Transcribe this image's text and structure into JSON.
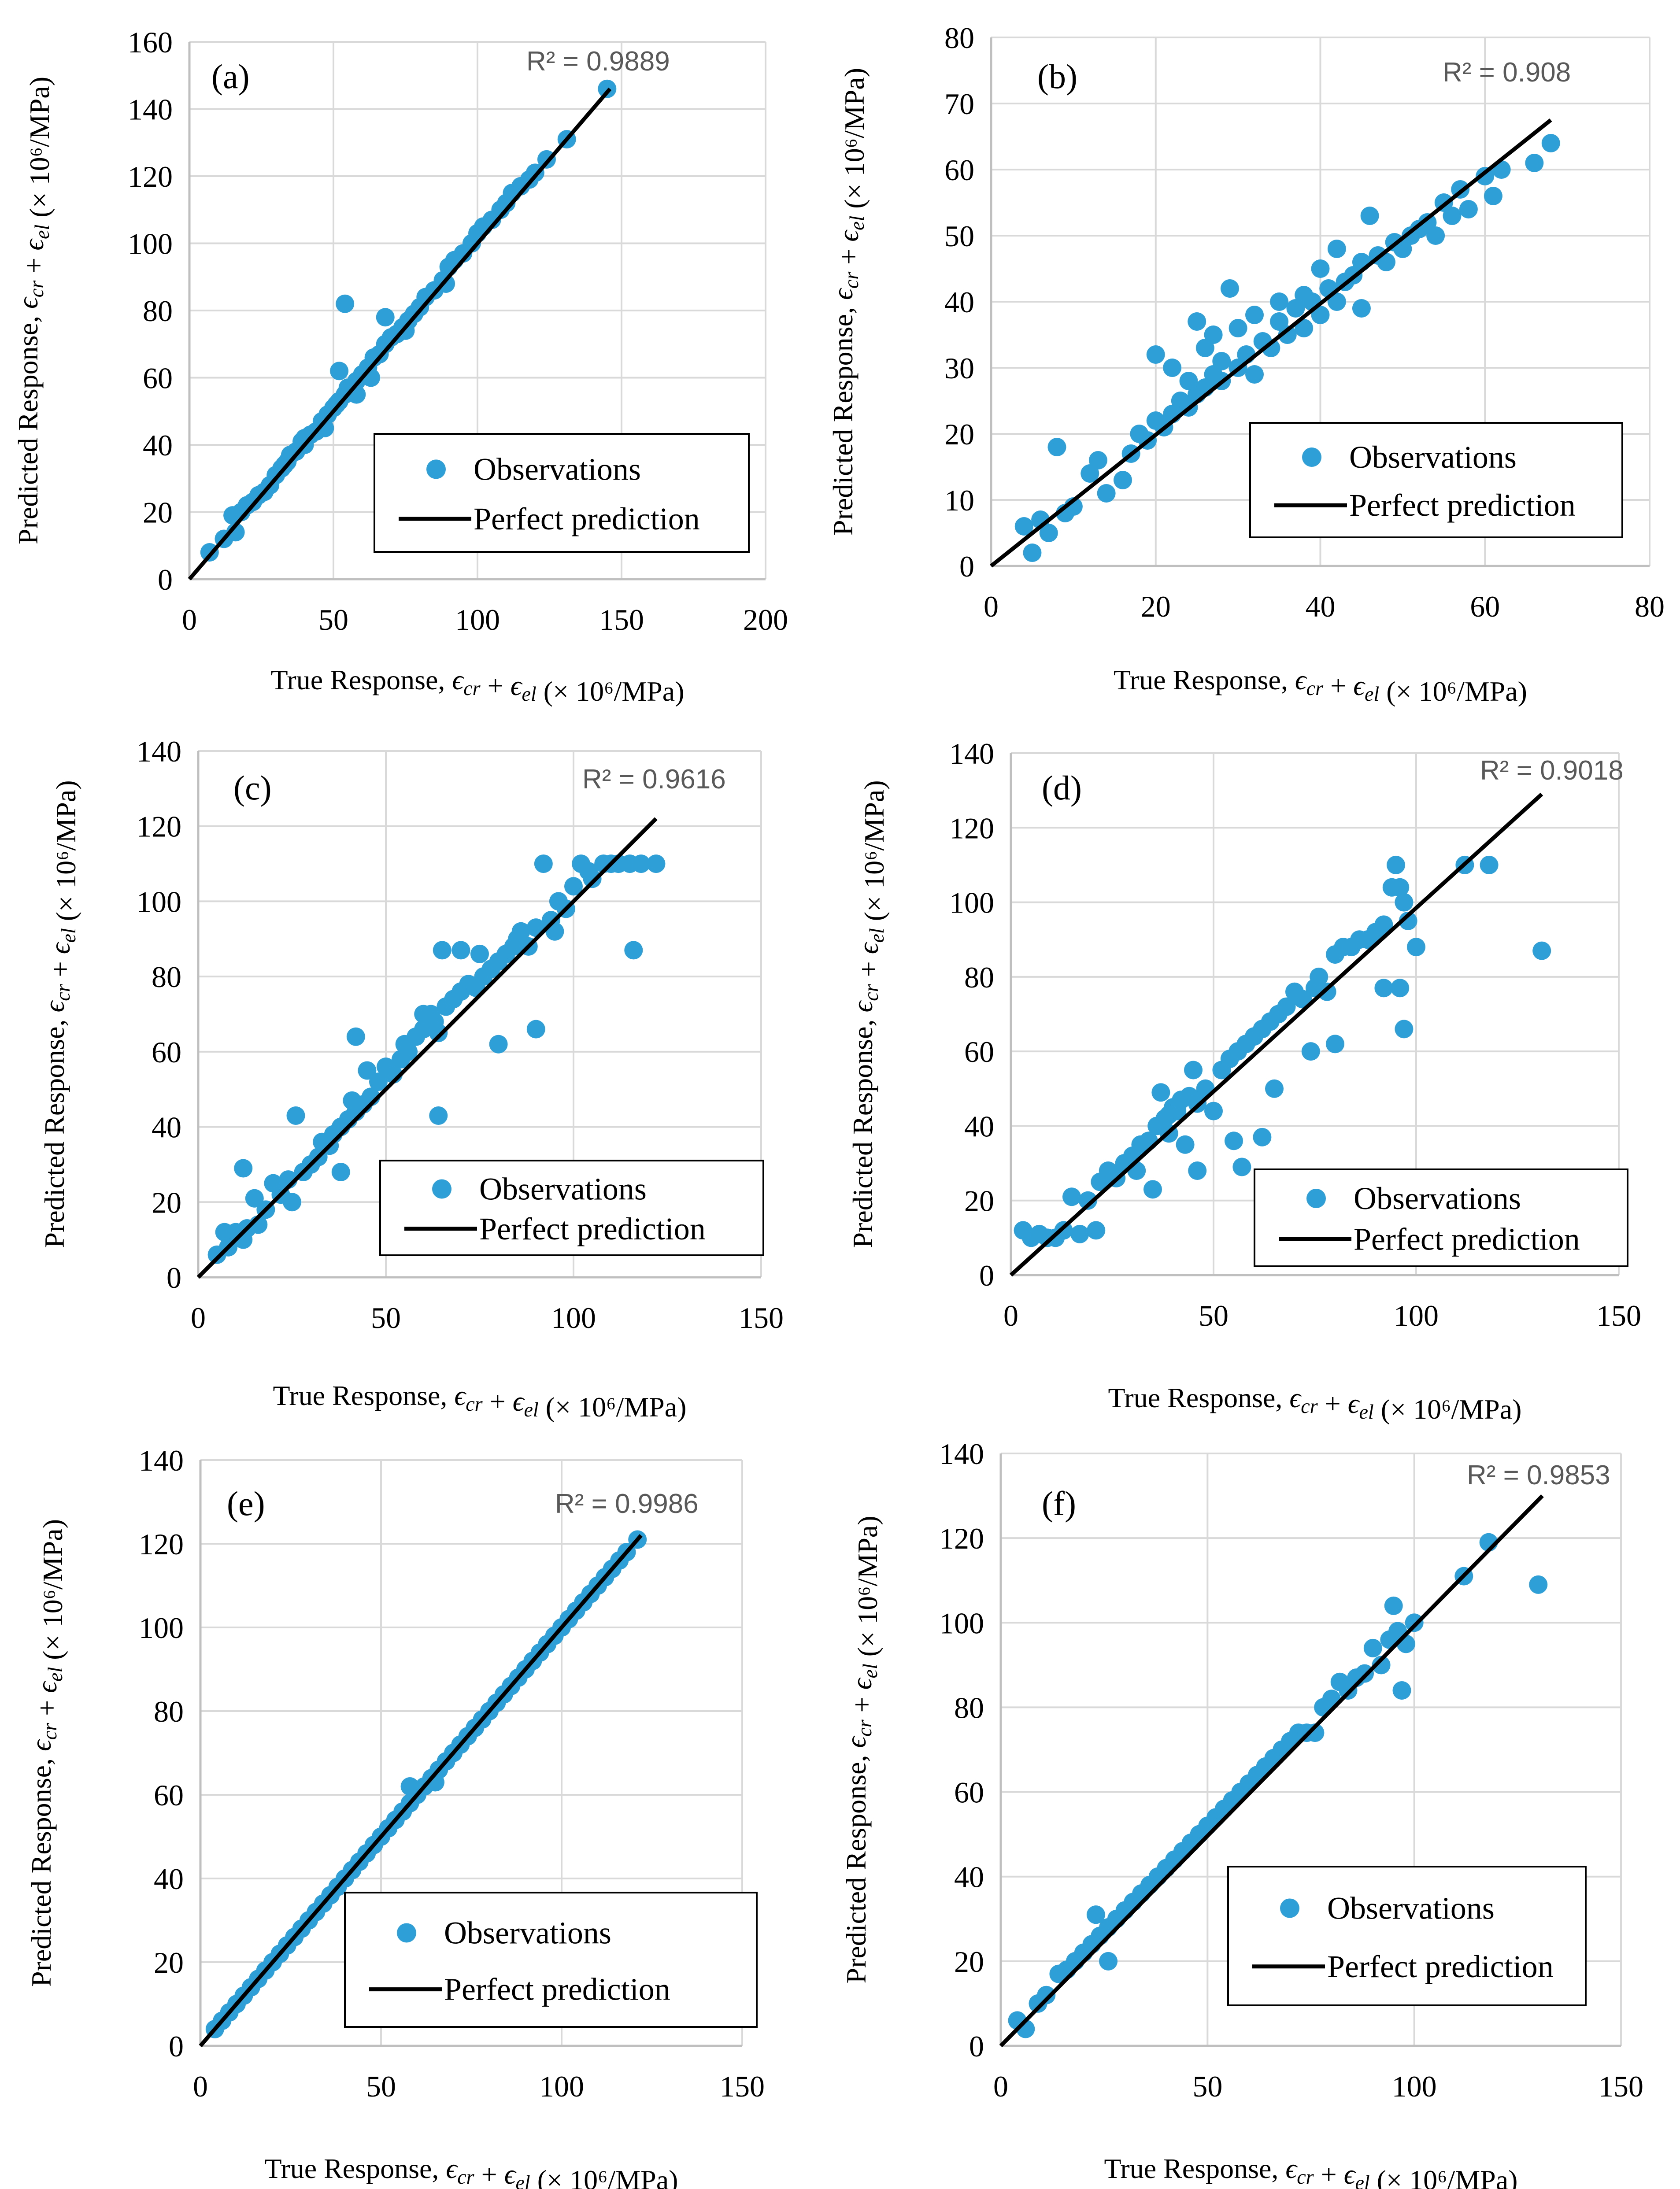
{
  "figure": {
    "marker_color": "#2F9FD8",
    "line_color": "#000000",
    "grid_color": "#D9D9D9",
    "axis_color": "#BFBFBF",
    "r2_color": "#595959"
  },
  "chart_data": [
    {
      "type": "scatter",
      "panel_label": "(a)",
      "r2_label": "R² = 0.9889",
      "xlabel": "True Response, εcr + εel (× 10⁶/MPa)",
      "ylabel": "Predicted Response, εcr + εel (× 10⁶/MPa)",
      "xlim": [
        0,
        200
      ],
      "ylim": [
        0,
        160
      ],
      "x_ticks": [
        0,
        50,
        100,
        150,
        200
      ],
      "y_ticks": [
        0,
        20,
        40,
        60,
        80,
        100,
        120,
        140,
        160
      ],
      "x_tick_labels": [
        "0",
        "50",
        "100",
        "150",
        "200"
      ],
      "y_tick_labels": [
        "0",
        "20",
        "40",
        "60",
        "80",
        "100",
        "120",
        "140",
        "160"
      ],
      "grid": true,
      "legend": {
        "placement": "bottom-right",
        "entries": [
          "Observations",
          "Perfect prediction"
        ]
      },
      "perfect_line": {
        "x": [
          0,
          146
        ],
        "y": [
          0,
          146
        ]
      },
      "observations": {
        "x": [
          7,
          12,
          15,
          16,
          18,
          20,
          22,
          24,
          26,
          28,
          30,
          32,
          34,
          35,
          37,
          39,
          40,
          42,
          44,
          46,
          48,
          50,
          51,
          52,
          54,
          55,
          56,
          58,
          60,
          62,
          64,
          66,
          68,
          70,
          72,
          74,
          76,
          78,
          80,
          82,
          85,
          88,
          90,
          92,
          95,
          98,
          100,
          102,
          105,
          108,
          110,
          112,
          115,
          118,
          120,
          124,
          131,
          145,
          54,
          52,
          68,
          28,
          40,
          63,
          75,
          47,
          58,
          33,
          89
        ],
        "y": [
          8,
          12,
          19,
          14,
          20,
          22,
          23,
          25,
          26,
          28,
          31,
          33,
          35,
          37,
          38,
          41,
          42,
          43,
          44,
          47,
          49,
          51,
          52,
          53,
          55,
          57,
          56,
          59,
          61,
          63,
          66,
          67,
          70,
          72,
          73,
          75,
          77,
          79,
          81,
          84,
          86,
          89,
          93,
          95,
          97,
          100,
          103,
          105,
          107,
          110,
          112,
          115,
          117,
          119,
          121,
          125,
          131,
          146,
          82,
          62,
          78,
          28,
          40,
          60,
          74,
          45,
          55,
          34,
          88
        ]
      }
    },
    {
      "type": "scatter",
      "panel_label": "(b)",
      "r2_label": "R² = 0.908",
      "xlabel": "True Response, εcr + εel (× 10⁶/MPa)",
      "ylabel": "Predicted Response, εcr + εel (× 10⁶/MPa)",
      "xlim": [
        0,
        80
      ],
      "ylim": [
        0,
        80
      ],
      "x_ticks": [
        0,
        20,
        40,
        60,
        80
      ],
      "y_ticks": [
        0,
        10,
        20,
        30,
        40,
        50,
        60,
        70,
        80
      ],
      "x_tick_labels": [
        "0",
        "20",
        "40",
        "60",
        "80"
      ],
      "y_tick_labels": [
        "0",
        "10",
        "20",
        "30",
        "40",
        "50",
        "60",
        "70",
        "80"
      ],
      "grid": true,
      "legend": {
        "placement": "bottom-right",
        "entries": [
          "Observations",
          "Perfect prediction"
        ]
      },
      "perfect_line": {
        "x": [
          0,
          68
        ],
        "y": [
          0,
          67.5
        ]
      },
      "observations": {
        "x": [
          4,
          5,
          6,
          7,
          8,
          9,
          10,
          12,
          13,
          14,
          16,
          17,
          18,
          19,
          20,
          20,
          21,
          22,
          22,
          23,
          24,
          24,
          25,
          25,
          26,
          26,
          27,
          27,
          28,
          28,
          29,
          30,
          30,
          31,
          32,
          32,
          33,
          34,
          35,
          35,
          36,
          37,
          38,
          38,
          39,
          40,
          40,
          41,
          42,
          42,
          43,
          44,
          45,
          45,
          46,
          47,
          48,
          49,
          50,
          51,
          52,
          53,
          54,
          55,
          56,
          57,
          58,
          60,
          61,
          62,
          66,
          68
        ],
        "y": [
          6,
          2,
          7,
          5,
          18,
          8,
          9,
          14,
          16,
          11,
          13,
          17,
          20,
          19,
          32,
          22,
          21,
          23,
          30,
          25,
          24,
          28,
          26,
          37,
          27,
          33,
          29,
          35,
          31,
          28,
          42,
          30,
          36,
          32,
          38,
          29,
          34,
          33,
          37,
          40,
          35,
          39,
          36,
          41,
          40,
          38,
          45,
          42,
          40,
          48,
          43,
          44,
          46,
          39,
          53,
          47,
          46,
          49,
          48,
          50,
          51,
          52,
          50,
          55,
          53,
          57,
          54,
          59,
          56,
          60,
          61,
          64
        ]
      }
    },
    {
      "type": "scatter",
      "panel_label": "(c)",
      "r2_label": "R² = 0.9616",
      "xlabel": "True Response, εcr + εel (× 10⁶/MPa)",
      "ylabel": "Predicted Response, εcr + εel (× 10⁶/MPa)",
      "xlim": [
        0,
        150
      ],
      "ylim": [
        0,
        140
      ],
      "x_ticks": [
        0,
        50,
        100,
        150
      ],
      "y_ticks": [
        0,
        20,
        40,
        60,
        80,
        100,
        120,
        140
      ],
      "x_tick_labels": [
        "0",
        "50",
        "100",
        "150"
      ],
      "y_tick_labels": [
        "0",
        "20",
        "40",
        "60",
        "80",
        "100",
        "120",
        "140"
      ],
      "grid": true,
      "legend": {
        "placement": "bottom-right",
        "entries": [
          "Observations",
          "Perfect prediction"
        ]
      },
      "perfect_line": {
        "x": [
          0,
          122
        ],
        "y": [
          0,
          122
        ]
      },
      "observations": {
        "x": [
          5,
          7,
          8,
          10,
          12,
          13,
          15,
          16,
          18,
          20,
          22,
          24,
          25,
          26,
          28,
          30,
          32,
          33,
          35,
          36,
          38,
          40,
          41,
          42,
          44,
          45,
          46,
          48,
          50,
          52,
          54,
          55,
          56,
          58,
          60,
          62,
          63,
          64,
          65,
          66,
          68,
          70,
          72,
          74,
          75,
          76,
          78,
          80,
          82,
          84,
          85,
          86,
          88,
          90,
          92,
          94,
          95,
          96,
          98,
          100,
          102,
          104,
          105,
          108,
          110,
          112,
          115,
          118,
          122,
          116,
          64,
          70,
          80,
          90,
          38,
          42,
          60,
          12
        ],
        "y": [
          6,
          12,
          8,
          12,
          10,
          13,
          21,
          14,
          18,
          25,
          22,
          26,
          20,
          43,
          28,
          30,
          32,
          36,
          35,
          38,
          40,
          42,
          47,
          44,
          46,
          55,
          48,
          52,
          56,
          54,
          58,
          62,
          60,
          64,
          66,
          70,
          68,
          65,
          87,
          72,
          74,
          76,
          78,
          77,
          86,
          80,
          82,
          84,
          86,
          88,
          90,
          92,
          88,
          93,
          110,
          95,
          92,
          100,
          98,
          104,
          110,
          108,
          106,
          110,
          110,
          110,
          110,
          110,
          110,
          87,
          43,
          87,
          62,
          66,
          28,
          64,
          70,
          29
        ]
      }
    },
    {
      "type": "scatter",
      "panel_label": "(d)",
      "r2_label": "R² = 0.9018",
      "xlabel": "True Response, εcr + εel (× 10⁶/MPa)",
      "ylabel": "Predicted Response, εcr + εel (× 10⁶/MPa)",
      "xlim": [
        0,
        150
      ],
      "ylim": [
        0,
        140
      ],
      "x_ticks": [
        0,
        50,
        100,
        150
      ],
      "y_ticks": [
        0,
        20,
        40,
        60,
        80,
        100,
        120,
        140
      ],
      "x_tick_labels": [
        "0",
        "50",
        "100",
        "150"
      ],
      "y_tick_labels": [
        "0",
        "20",
        "40",
        "60",
        "80",
        "100",
        "120",
        "140"
      ],
      "grid": true,
      "legend": {
        "placement": "bottom-right",
        "entries": [
          "Observations",
          "Perfect prediction"
        ]
      },
      "perfect_line": {
        "x": [
          0,
          131
        ],
        "y": [
          0,
          129
        ]
      },
      "observations": {
        "x": [
          3,
          5,
          7,
          9,
          11,
          13,
          15,
          17,
          19,
          21,
          22,
          24,
          26,
          28,
          30,
          31,
          32,
          34,
          35,
          36,
          37,
          38,
          39,
          40,
          41,
          42,
          43,
          44,
          45,
          46,
          48,
          50,
          52,
          54,
          55,
          56,
          58,
          60,
          62,
          64,
          65,
          66,
          68,
          70,
          72,
          74,
          75,
          76,
          78,
          80,
          82,
          84,
          86,
          88,
          90,
          92,
          94,
          95,
          96,
          97,
          98,
          100,
          112,
          118,
          131,
          96,
          97,
          92,
          57,
          62,
          39,
          46,
          80
        ],
        "y": [
          12,
          10,
          11,
          10,
          10,
          12,
          21,
          11,
          20,
          12,
          25,
          28,
          26,
          30,
          32,
          28,
          35,
          36,
          23,
          40,
          49,
          42,
          38,
          45,
          44,
          47,
          35,
          48,
          55,
          46,
          50,
          44,
          55,
          58,
          36,
          60,
          62,
          64,
          66,
          68,
          50,
          70,
          72,
          76,
          74,
          60,
          77,
          80,
          76,
          86,
          88,
          88,
          90,
          90,
          92,
          94,
          104,
          110,
          104,
          100,
          95,
          88,
          110,
          110,
          87,
          77,
          66,
          77,
          29,
          37,
          43,
          28,
          62
        ]
      }
    },
    {
      "type": "scatter",
      "panel_label": "(e)",
      "r2_label": "R² = 0.9986",
      "xlabel": "True Response, εcr + εel (× 10⁶/MPa)",
      "ylabel": "Predicted Response, εcr + εel (× 10⁶/MPa)",
      "xlim": [
        0,
        150
      ],
      "ylim": [
        0,
        140
      ],
      "x_ticks": [
        0,
        50,
        100,
        150
      ],
      "y_ticks": [
        0,
        20,
        40,
        60,
        80,
        100,
        120,
        140
      ],
      "x_tick_labels": [
        "0",
        "50",
        "100",
        "150"
      ],
      "y_tick_labels": [
        "0",
        "20",
        "40",
        "60",
        "80",
        "100",
        "120",
        "140"
      ],
      "grid": true,
      "legend": {
        "placement": "bottom-right",
        "entries": [
          "Observations",
          "Perfect prediction"
        ]
      },
      "perfect_line": {
        "x": [
          0,
          122
        ],
        "y": [
          0,
          122
        ]
      },
      "observations": {
        "x": [
          4,
          6,
          8,
          10,
          12,
          14,
          16,
          18,
          20,
          22,
          24,
          26,
          28,
          30,
          32,
          34,
          36,
          38,
          40,
          42,
          44,
          46,
          48,
          50,
          52,
          54,
          56,
          58,
          60,
          62,
          64,
          66,
          68,
          70,
          72,
          74,
          76,
          78,
          80,
          82,
          84,
          86,
          88,
          90,
          92,
          94,
          96,
          98,
          100,
          102,
          104,
          106,
          108,
          110,
          112,
          114,
          116,
          118,
          121,
          58,
          65
        ],
        "y": [
          4,
          6,
          8,
          10,
          12,
          14,
          16,
          18,
          20,
          22,
          24,
          26,
          28,
          30,
          32,
          34,
          36,
          38,
          40,
          42,
          44,
          46,
          48,
          50,
          52,
          54,
          56,
          58,
          60,
          62,
          64,
          66,
          68,
          70,
          72,
          74,
          76,
          78,
          80,
          82,
          84,
          86,
          88,
          90,
          92,
          94,
          96,
          98,
          100,
          102,
          104,
          106,
          108,
          110,
          112,
          114,
          116,
          118,
          121,
          62,
          63
        ]
      }
    },
    {
      "type": "scatter",
      "panel_label": "(f)",
      "r2_label": "R² = 0.9853",
      "xlabel": "True Response, εcr + εel (× 10⁶/MPa)",
      "ylabel": "Predicted Response, εcr + εel (× 10⁶/MPa)",
      "xlim": [
        0,
        150
      ],
      "ylim": [
        0,
        140
      ],
      "x_ticks": [
        0,
        50,
        100,
        150
      ],
      "y_ticks": [
        0,
        20,
        40,
        60,
        80,
        100,
        120,
        140
      ],
      "x_tick_labels": [
        "0",
        "50",
        "100",
        "150"
      ],
      "y_tick_labels": [
        "0",
        "20",
        "40",
        "60",
        "80",
        "100",
        "120",
        "140"
      ],
      "grid": true,
      "legend": {
        "placement": "bottom-right",
        "entries": [
          "Observations",
          "Perfect prediction"
        ]
      },
      "perfect_line": {
        "x": [
          0,
          131
        ],
        "y": [
          0,
          130
        ]
      },
      "observations": {
        "x": [
          4,
          6,
          9,
          11,
          14,
          16,
          18,
          20,
          22,
          24,
          26,
          28,
          30,
          32,
          34,
          36,
          38,
          40,
          42,
          44,
          46,
          48,
          50,
          52,
          54,
          56,
          58,
          60,
          62,
          64,
          66,
          68,
          70,
          72,
          74,
          76,
          78,
          80,
          82,
          84,
          86,
          88,
          90,
          92,
          94,
          95,
          96,
          98,
          100,
          112,
          118,
          130,
          97,
          26,
          23
        ],
        "y": [
          6,
          4,
          10,
          12,
          17,
          18,
          20,
          22,
          24,
          26,
          28,
          30,
          32,
          34,
          36,
          38,
          40,
          42,
          44,
          46,
          48,
          50,
          52,
          54,
          56,
          58,
          60,
          62,
          64,
          66,
          68,
          70,
          72,
          74,
          74,
          74,
          80,
          82,
          86,
          84,
          87,
          88,
          94,
          90,
          96,
          104,
          98,
          95,
          100,
          111,
          119,
          109,
          84,
          20,
          31
        ]
      }
    }
  ]
}
